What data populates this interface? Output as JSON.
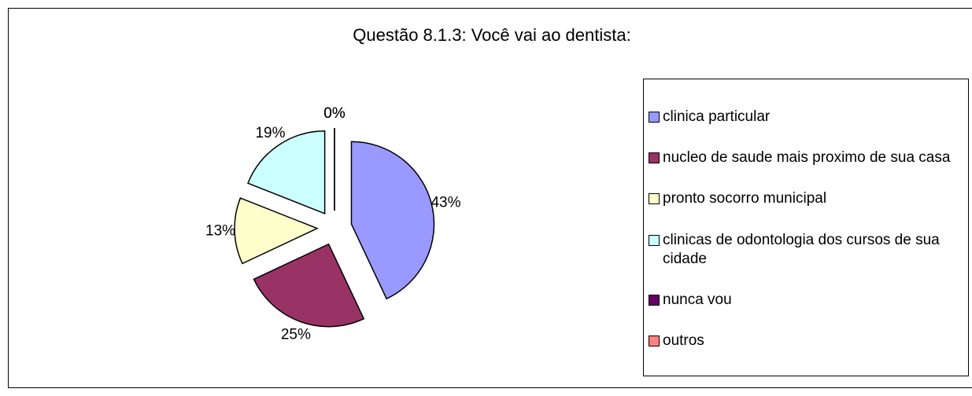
{
  "chart_data": {
    "type": "pie",
    "title": "Questão 8.1.3: Você vai ao dentista:",
    "categories": [
      "clinica particular",
      "nucleo de saude mais proximo de sua casa",
      "pronto socorro municipal",
      "clinicas de odontologia dos cursos de sua cidade",
      "nunca vou",
      "outros"
    ],
    "values": [
      43,
      25,
      13,
      19,
      0,
      0
    ],
    "value_labels": [
      "43%",
      "25%",
      "13%",
      "19%",
      "0%",
      "0%"
    ],
    "colors": [
      "#9999ff",
      "#993366",
      "#ffffcc",
      "#ccffff",
      "#660066",
      "#ff8080"
    ],
    "exploded": true,
    "legend": "right"
  }
}
